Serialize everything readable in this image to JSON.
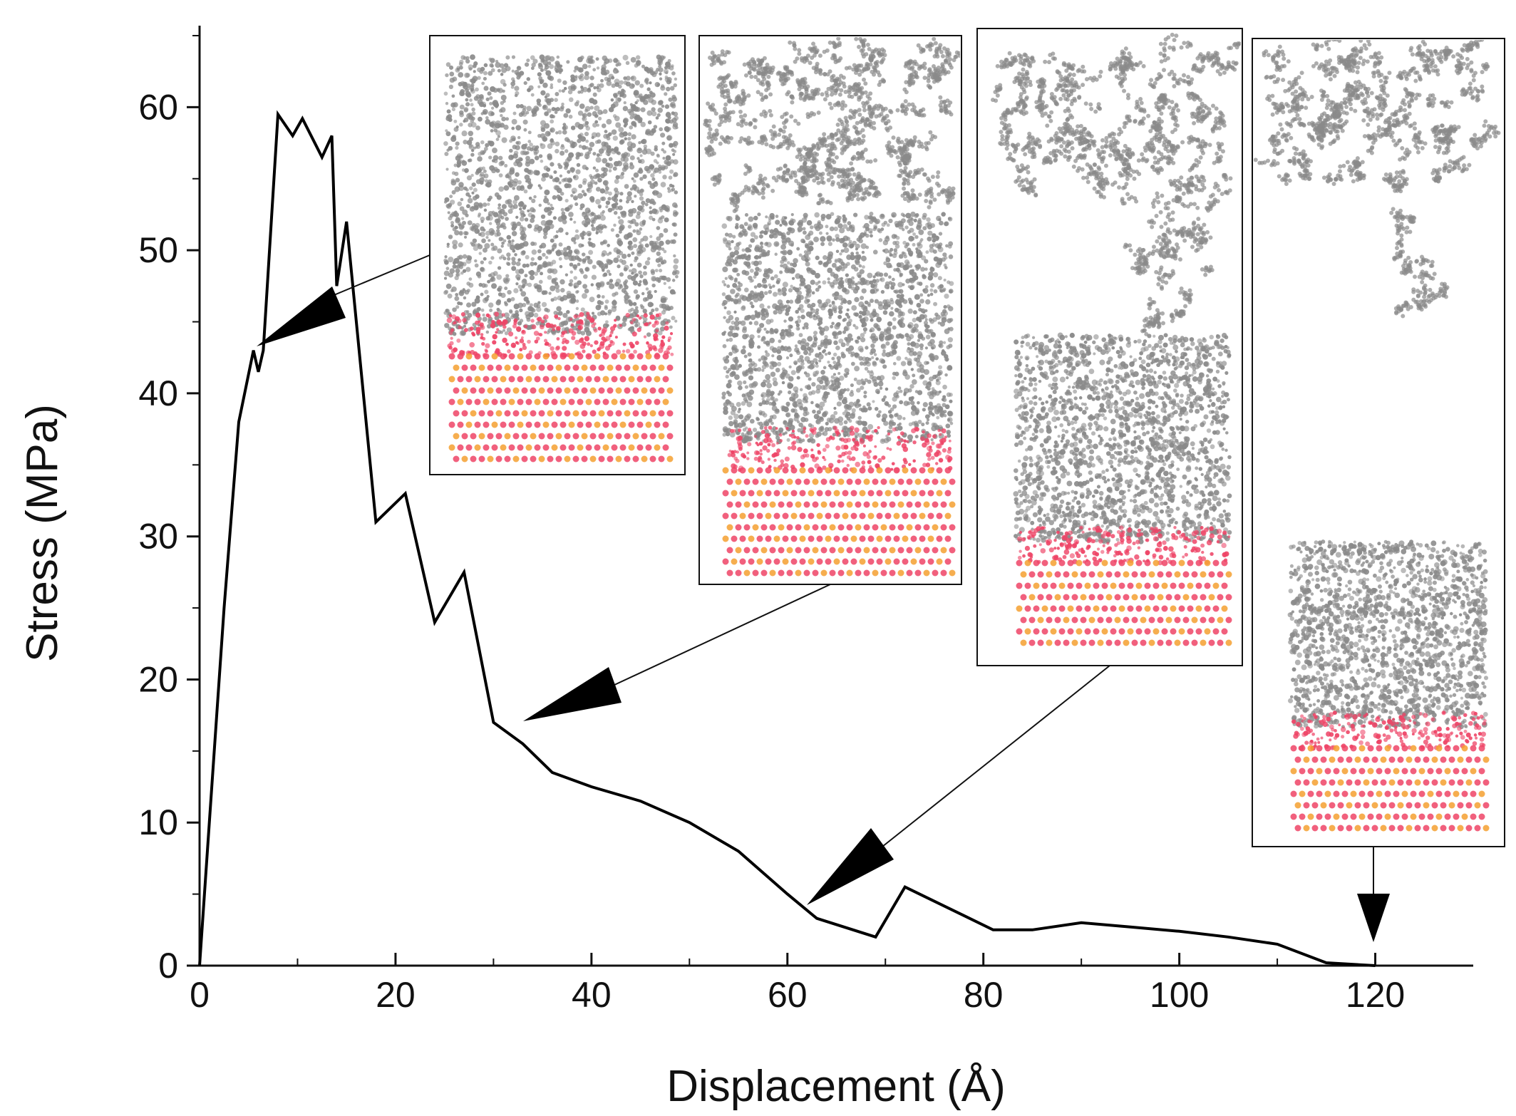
{
  "chart_data": {
    "type": "line",
    "title": "",
    "xlabel": "Displacement (Å)",
    "ylabel": "Stress (MPa)",
    "xlim": [
      0,
      130
    ],
    "ylim": [
      0,
      65
    ],
    "xticks": [
      0,
      20,
      40,
      60,
      80,
      100,
      120
    ],
    "yticks": [
      0,
      10,
      20,
      30,
      40,
      50,
      60
    ],
    "grid": false,
    "series": [
      {
        "name": "Stress",
        "color": "#000000",
        "x": [
          0,
          1,
          2.5,
          4,
          5.5,
          6,
          6.5,
          8,
          9.5,
          10.5,
          12.5,
          13.5,
          14,
          15,
          18,
          21,
          24,
          27,
          30,
          33,
          36,
          40,
          45,
          50,
          55,
          60,
          63,
          69,
          72,
          75,
          78,
          81,
          85,
          90,
          95,
          100,
          105,
          110,
          115,
          120
        ],
        "y": [
          0,
          10,
          25,
          38,
          43,
          41.5,
          43,
          59.5,
          58,
          59.2,
          56.5,
          58,
          47.5,
          52,
          31,
          33,
          24,
          27.5,
          17,
          15.5,
          13.5,
          12.5,
          11.5,
          10,
          8,
          5,
          3.3,
          2,
          5.5,
          4.5,
          3.5,
          2.5,
          2.5,
          3,
          2.7,
          2.4,
          2,
          1.5,
          0.2,
          0
        ]
      }
    ],
    "annotations": [
      {
        "type": "inset",
        "label": "snapshot-1",
        "points_to": [
          6,
          43
        ]
      },
      {
        "type": "inset",
        "label": "snapshot-2",
        "points_to": [
          33,
          16.5
        ]
      },
      {
        "type": "inset",
        "label": "snapshot-3",
        "points_to": [
          62,
          4.2
        ]
      },
      {
        "type": "inset",
        "label": "snapshot-4",
        "points_to": [
          120,
          1.5
        ]
      }
    ]
  },
  "colors": {
    "interface_atoms": "#ee4466",
    "interface_atoms_alt": "#f4a030",
    "polymer_atoms": "#8a8a8a"
  }
}
